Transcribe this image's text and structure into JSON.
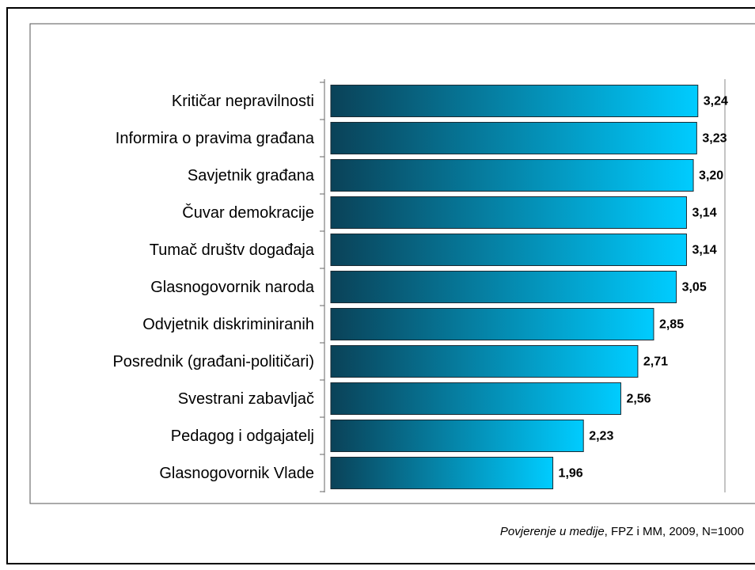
{
  "chart_data": {
    "type": "bar",
    "orientation": "horizontal",
    "categories": [
      "Kritičar nepravilnosti",
      "Informira o pravima građana",
      "Savjetnik građana",
      "Čuvar demokracije",
      "Tumač društv događaja",
      "Glasnogovornik naroda",
      "Odvjetnik diskriminiranih",
      "Posrednik (građani-političari)",
      "Svestrani zabavljač",
      "Pedagog i odgajatelj",
      "Glasnogovornik Vlade"
    ],
    "values": [
      3.24,
      3.23,
      3.2,
      3.14,
      3.14,
      3.05,
      2.85,
      2.71,
      2.56,
      2.23,
      1.96
    ],
    "value_labels": [
      "3,24",
      "3,23",
      "3,20",
      "3,14",
      "3,14",
      "3,05",
      "2,85",
      "2,71",
      "2,56",
      "2,23",
      "1,96"
    ],
    "color": "#00ccff",
    "xlim": [
      0,
      3.5
    ],
    "source": {
      "title": "Povjerenje u medije",
      "rest": ", FPZ i MM, 2009, N=1000"
    }
  }
}
